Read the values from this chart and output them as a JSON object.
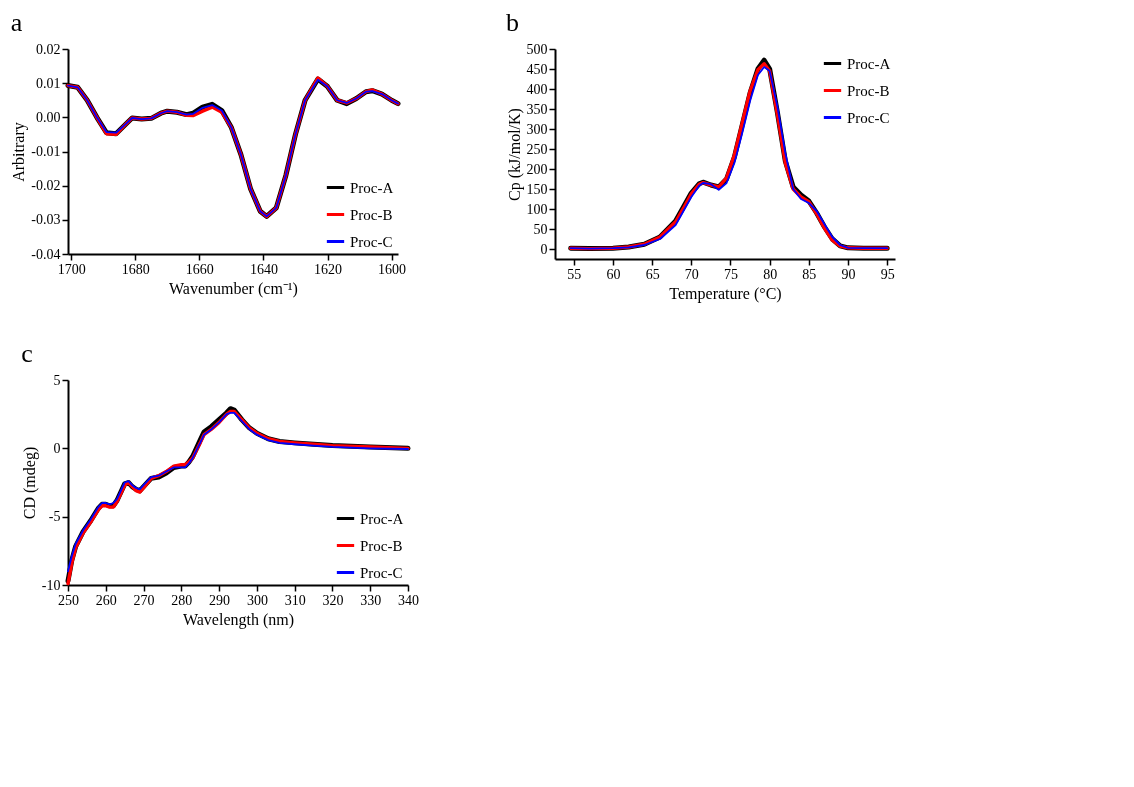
{
  "chart_data": [
    {
      "type": "line",
      "title": "a",
      "xlabel": "Wavenumber (cm⁻¹)",
      "ylabel": "Arbitrary",
      "xlim": [
        1701,
        1598
      ],
      "xticks": [
        1700,
        1680,
        1660,
        1640,
        1620,
        1600
      ],
      "ylim": [
        -0.04,
        0.02
      ],
      "yticks": [
        {
          "value": 0.02,
          "label": "0.02"
        },
        {
          "value": 0.01,
          "label": "0.01"
        },
        {
          "value": 0,
          "label": "0.00"
        },
        {
          "value": -0.01,
          "label": "-0.01"
        },
        {
          "value": -0.02,
          "label": "-0.02"
        },
        {
          "value": -0.03,
          "label": "-0.03"
        },
        {
          "value": -0.04,
          "label": "-0.04"
        }
      ],
      "grid": false,
      "legend": "bottom right",
      "line_style": "solid",
      "marker": "none",
      "x": [
        1701,
        1698,
        1695,
        1692,
        1689,
        1686,
        1683,
        1681,
        1678,
        1675,
        1672,
        1670,
        1667,
        1664,
        1662,
        1659,
        1656,
        1653,
        1650,
        1647,
        1644,
        1641,
        1639,
        1636,
        1633,
        1630,
        1627,
        1623,
        1620,
        1617,
        1614,
        1611,
        1608,
        1606,
        1603,
        1600,
        1598
      ],
      "series": [
        {
          "name": "Proc-A",
          "color": "#000000",
          "values": [
            0.0093,
            0.0088,
            0.005,
            0.0,
            -0.0045,
            -0.0048,
            -0.002,
            -0.0002,
            -0.0005,
            -0.0003,
            0.0012,
            0.0018,
            0.0015,
            0.0008,
            0.0012,
            0.003,
            0.0038,
            0.002,
            -0.003,
            -0.011,
            -0.021,
            -0.0275,
            -0.029,
            -0.0265,
            -0.017,
            -0.005,
            0.005,
            0.0112,
            0.009,
            0.005,
            0.004,
            0.0055,
            0.0075,
            0.0078,
            0.0068,
            0.005,
            0.004
          ]
        },
        {
          "name": "Proc-B",
          "color": "#ff0000",
          "values": [
            0.0093,
            0.0088,
            0.005,
            0.0,
            -0.0048,
            -0.005,
            -0.002,
            -0.0002,
            -0.0005,
            -0.0003,
            0.0012,
            0.0018,
            0.0015,
            0.0006,
            0.0005,
            0.0018,
            0.003,
            0.0015,
            -0.003,
            -0.011,
            -0.021,
            -0.0275,
            -0.029,
            -0.0265,
            -0.017,
            -0.005,
            0.005,
            0.0115,
            0.009,
            0.005,
            0.0042,
            0.0055,
            0.0075,
            0.008,
            0.0068,
            0.005,
            0.004
          ]
        },
        {
          "name": "Proc-C",
          "color": "#0000ff",
          "values": [
            0.0093,
            0.0088,
            0.005,
            0.0,
            -0.0043,
            -0.0045,
            -0.002,
            -0.0002,
            -0.0005,
            -0.0003,
            0.0012,
            0.0018,
            0.0015,
            0.0008,
            0.001,
            0.0028,
            0.0036,
            0.002,
            -0.003,
            -0.011,
            -0.021,
            -0.0275,
            -0.029,
            -0.0265,
            -0.017,
            -0.005,
            0.005,
            0.011,
            0.009,
            0.005,
            0.0042,
            0.0055,
            0.0075,
            0.0077,
            0.0068,
            0.005,
            0.004
          ]
        }
      ]
    },
    {
      "type": "line",
      "title": "b",
      "xlabel": "Temperature (°C)",
      "ylabel": "Cp (kJ/mol/K)",
      "xlim": [
        52.6,
        96
      ],
      "xticks": [
        55,
        60,
        65,
        70,
        75,
        80,
        85,
        90,
        95
      ],
      "ylim": [
        -25,
        500
      ],
      "yticks": [
        0,
        50,
        100,
        150,
        200,
        250,
        300,
        350,
        400,
        450,
        500
      ],
      "grid": false,
      "legend": "top right",
      "line_style": "solid",
      "marker": "none",
      "x": [
        54.6,
        57,
        60,
        62,
        64,
        66,
        68,
        69,
        70,
        71,
        71.5,
        72.5,
        73.5,
        74.5,
        75.5,
        76.5,
        77.5,
        78.5,
        79.3,
        80,
        81,
        82,
        83,
        84,
        85,
        86,
        87,
        88,
        89,
        90,
        92,
        95
      ],
      "series": [
        {
          "name": "Proc-A",
          "color": "#000000",
          "values": [
            2,
            1,
            2,
            5,
            12,
            30,
            70,
            105,
            140,
            163,
            167,
            160,
            155,
            175,
            230,
            310,
            390,
            450,
            472,
            450,
            340,
            220,
            155,
            135,
            120,
            90,
            55,
            25,
            8,
            3,
            2,
            2
          ]
        },
        {
          "name": "Proc-B",
          "color": "#ff0000",
          "values": [
            2,
            1,
            2,
            5,
            12,
            30,
            68,
            102,
            138,
            162,
            166,
            160,
            155,
            178,
            235,
            315,
            395,
            448,
            463,
            445,
            335,
            215,
            150,
            130,
            118,
            88,
            52,
            22,
            7,
            3,
            2,
            2
          ]
        },
        {
          "name": "Proc-C",
          "color": "#0000ff",
          "values": [
            2,
            1,
            2,
            4,
            10,
            25,
            60,
            95,
            130,
            158,
            165,
            162,
            148,
            165,
            215,
            290,
            370,
            435,
            455,
            445,
            355,
            240,
            150,
            125,
            115,
            95,
            62,
            30,
            10,
            3,
            2,
            2
          ]
        }
      ]
    },
    {
      "type": "line",
      "title": "c",
      "xlabel": "Wavelength (nm)",
      "ylabel": "CD (mdeg)",
      "xlim": [
        250,
        340
      ],
      "xticks": [
        250,
        260,
        270,
        280,
        290,
        300,
        310,
        320,
        330,
        340
      ],
      "ylim": [
        -10,
        5
      ],
      "yticks": [
        5,
        0,
        -5,
        -10
      ],
      "grid": false,
      "legend": "bottom right",
      "line_style": "solid",
      "marker": "none",
      "x": [
        250,
        251,
        252,
        254,
        256,
        258,
        259,
        260,
        261,
        262,
        263,
        265,
        266,
        267,
        268,
        269,
        270,
        272,
        274,
        276,
        278,
        280,
        281,
        282,
        283,
        285,
        286,
        288,
        290,
        292,
        293,
        294,
        296,
        298,
        300,
        303,
        306,
        310,
        315,
        320,
        330,
        340
      ],
      "series": [
        {
          "name": "Proc-A",
          "color": "#000000",
          "values": [
            -9.7,
            -8.2,
            -7.2,
            -6.1,
            -5.3,
            -4.4,
            -4.1,
            -4.1,
            -4.2,
            -4.2,
            -3.8,
            -2.6,
            -2.5,
            -2.8,
            -3.0,
            -3.1,
            -2.8,
            -2.2,
            -2.1,
            -1.8,
            -1.4,
            -1.3,
            -1.3,
            -1.0,
            -0.6,
            0.6,
            1.2,
            1.6,
            2.1,
            2.6,
            2.9,
            2.8,
            2.1,
            1.5,
            1.1,
            0.7,
            0.5,
            0.4,
            0.3,
            0.2,
            0.1,
            0.0
          ]
        },
        {
          "name": "Proc-B",
          "color": "#ff0000",
          "values": [
            -9.9,
            -8.4,
            -7.3,
            -6.2,
            -5.4,
            -4.5,
            -4.2,
            -4.2,
            -4.3,
            -4.3,
            -3.9,
            -2.7,
            -2.5,
            -2.8,
            -3.1,
            -3.2,
            -2.9,
            -2.2,
            -2.0,
            -1.7,
            -1.3,
            -1.2,
            -1.2,
            -1.0,
            -0.7,
            0.4,
            1.0,
            1.4,
            1.9,
            2.5,
            2.7,
            2.7,
            2.1,
            1.5,
            1.1,
            0.7,
            0.5,
            0.4,
            0.3,
            0.2,
            0.1,
            0.0
          ]
        },
        {
          "name": "Proc-C",
          "color": "#0000ff",
          "values": [
            -9.0,
            -7.9,
            -7.0,
            -6.0,
            -5.2,
            -4.3,
            -4.0,
            -4.0,
            -4.1,
            -4.0,
            -3.7,
            -2.5,
            -2.4,
            -2.7,
            -2.9,
            -3.0,
            -2.7,
            -2.1,
            -2.0,
            -1.7,
            -1.4,
            -1.4,
            -1.4,
            -1.1,
            -0.7,
            0.4,
            1.0,
            1.4,
            1.9,
            2.5,
            2.6,
            2.6,
            2.0,
            1.4,
            1.0,
            0.6,
            0.4,
            0.3,
            0.2,
            0.1,
            0.0,
            -0.05
          ]
        }
      ]
    }
  ]
}
